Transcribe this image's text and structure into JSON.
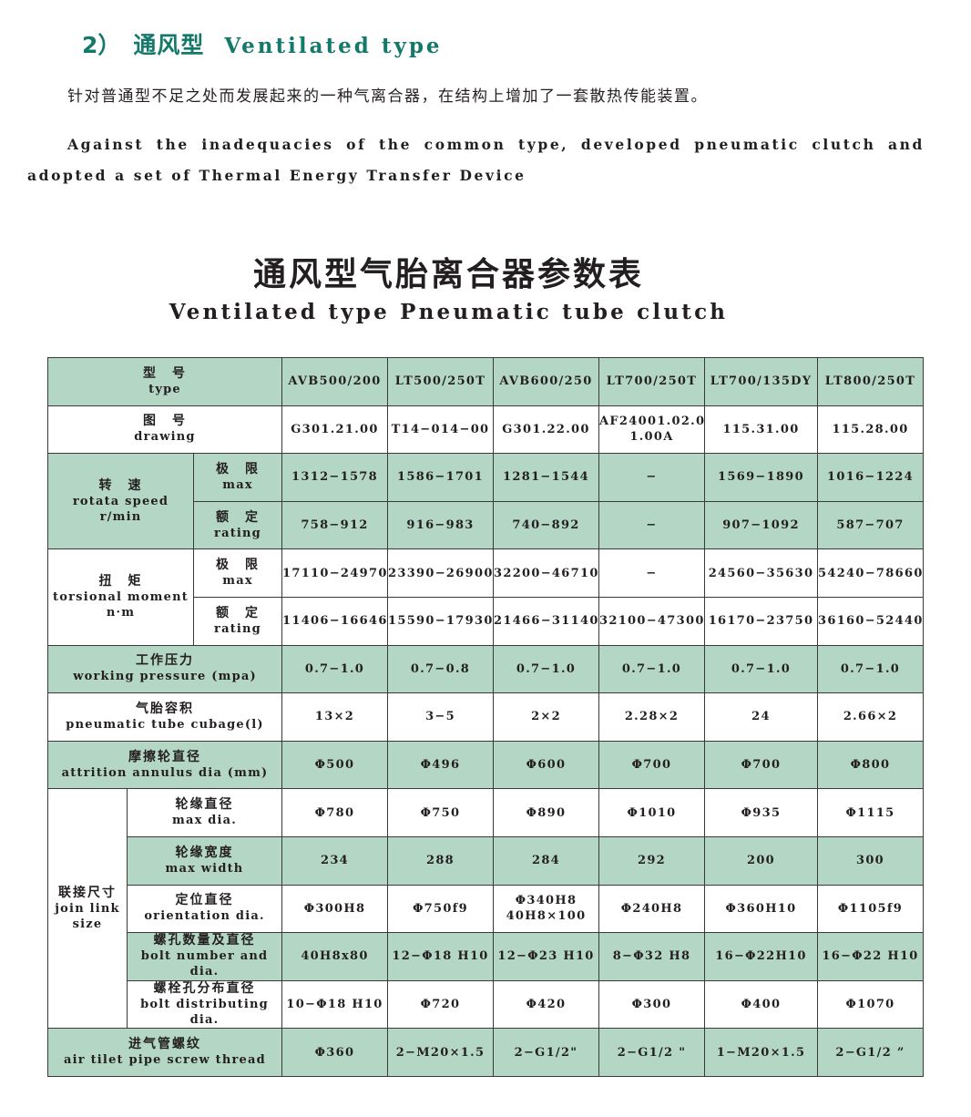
{
  "heading": {
    "number": "2）",
    "zh": "通风型",
    "en": "Ventilated type"
  },
  "colors": {
    "accent": "#15796a",
    "table_green": "#b4d6c5",
    "border": "#3a3a3a"
  },
  "intro_zh": "针对普通型不足之处而发展起来的一种气离合器，在结构上增加了一套散热传能装置。",
  "intro_en": "Against the inadequacies of the common type,  developed pneumatic clutch and adopted a set of Thermal Energy Transfer Device",
  "table_title_zh": "通风型气胎离合器参数表",
  "table_title_en": "Ventilated type Pneumatic tube clutch",
  "groups": {
    "speed": {
      "zh": "转　速",
      "en": "rotata speed\nr/min",
      "shade": "green"
    },
    "torque": {
      "zh": "扭　矩",
      "en": "torsional moment\nn·m",
      "shade": "white"
    },
    "join": {
      "zh": "联接尺寸",
      "en": "join link\nsize",
      "shade": "white"
    }
  },
  "rows": [
    {
      "shade": "green",
      "zh": "型　号",
      "en": "type",
      "values": [
        "AVB500/200",
        "LT500/250T",
        "AVB600/250",
        "LT700/250T",
        "LT700/135DY",
        "LT800/250T"
      ]
    },
    {
      "shade": "white",
      "zh": "图　号",
      "en": "drawing",
      "values": [
        "G301.21.00",
        "T14−014−00",
        "G301.22.00",
        "AF24001.02.0\n1.00A",
        "115.31.00",
        "115.28.00"
      ]
    },
    {
      "shade": "green",
      "group": "speed",
      "zh": "极　限",
      "en": "max",
      "values": [
        "1312−1578",
        "1586−1701",
        "1281−1544",
        "−",
        "1569−1890",
        "1016−1224"
      ]
    },
    {
      "shade": "green",
      "group": "speed",
      "zh": "额　定",
      "en": "rating",
      "values": [
        "758−912",
        "916−983",
        "740−892",
        "−",
        "907−1092",
        "587−707"
      ]
    },
    {
      "shade": "white",
      "group": "torque",
      "zh": "极　限",
      "en": "max",
      "values": [
        "17110−24970",
        "23390−26900",
        "32200−46710",
        "−",
        "24560−35630",
        "54240−78660"
      ]
    },
    {
      "shade": "white",
      "group": "torque",
      "zh": "额　定",
      "en": "rating",
      "values": [
        "11406−16646",
        "15590−17930",
        "21466−31140",
        "32100−47300",
        "16170−23750",
        "36160−52440"
      ]
    },
    {
      "shade": "green",
      "zh": "工作压力",
      "en": "working pressure (mpa)",
      "values": [
        "0.7−1.0",
        "0.7−0.8",
        "0.7−1.0",
        "0.7−1.0",
        "0.7−1.0",
        "0.7−1.0"
      ]
    },
    {
      "shade": "white",
      "zh": "气胎容积",
      "en": "pneumatic tube cubage(l)",
      "values": [
        "13×2",
        "3−5",
        "2×2",
        "2.28×2",
        "24",
        "2.66×2"
      ]
    },
    {
      "shade": "green",
      "zh": "摩擦轮直径",
      "en": "attrition annulus dia (mm)",
      "values": [
        "Φ500",
        "Φ496",
        "Φ600",
        "Φ700",
        "Φ700",
        "Φ800"
      ]
    },
    {
      "shade": "white",
      "group": "join",
      "zh": "轮缘直径",
      "en": "max dia.",
      "values": [
        "Φ780",
        "Φ750",
        "Φ890",
        "Φ1010",
        "Φ935",
        "Φ1115"
      ]
    },
    {
      "shade": "green",
      "group": "join",
      "zh": "轮缘宽度",
      "en": "max width",
      "values": [
        "234",
        "288",
        "284",
        "292",
        "200",
        "300"
      ]
    },
    {
      "shade": "white",
      "group": "join",
      "zh": "定位直径",
      "en": "orientation dia.",
      "values": [
        "Φ300H8",
        "Φ750f9",
        "Φ340H8\n40H8×100",
        "Φ240H8",
        "Φ360H10",
        "Φ1105f9"
      ]
    },
    {
      "shade": "green",
      "group": "join",
      "zh": "螺孔数量及直径",
      "en": "bolt number and dia.",
      "values": [
        "40H8x80",
        "12−Φ18 H10",
        "12−Φ23 H10",
        "8−Φ32 H8",
        "16−Φ22H10",
        "16−Φ22 H10"
      ]
    },
    {
      "shade": "white",
      "group": "join",
      "zh": "螺栓孔分布直径",
      "en": "bolt distributing dia.",
      "values": [
        "10−Φ18 H10",
        "Φ720",
        "Φ420",
        "Φ300",
        "Φ400",
        "Φ1070"
      ]
    },
    {
      "shade": "green",
      "zh": "进气管螺纹",
      "en": "air tilet pipe screw thread",
      "values": [
        "Φ360",
        "2−M20×1.5",
        "2−G1/2\"",
        "2−G1/2 \"",
        "1−M20×1.5",
        "2−G1/2 ”"
      ]
    }
  ]
}
